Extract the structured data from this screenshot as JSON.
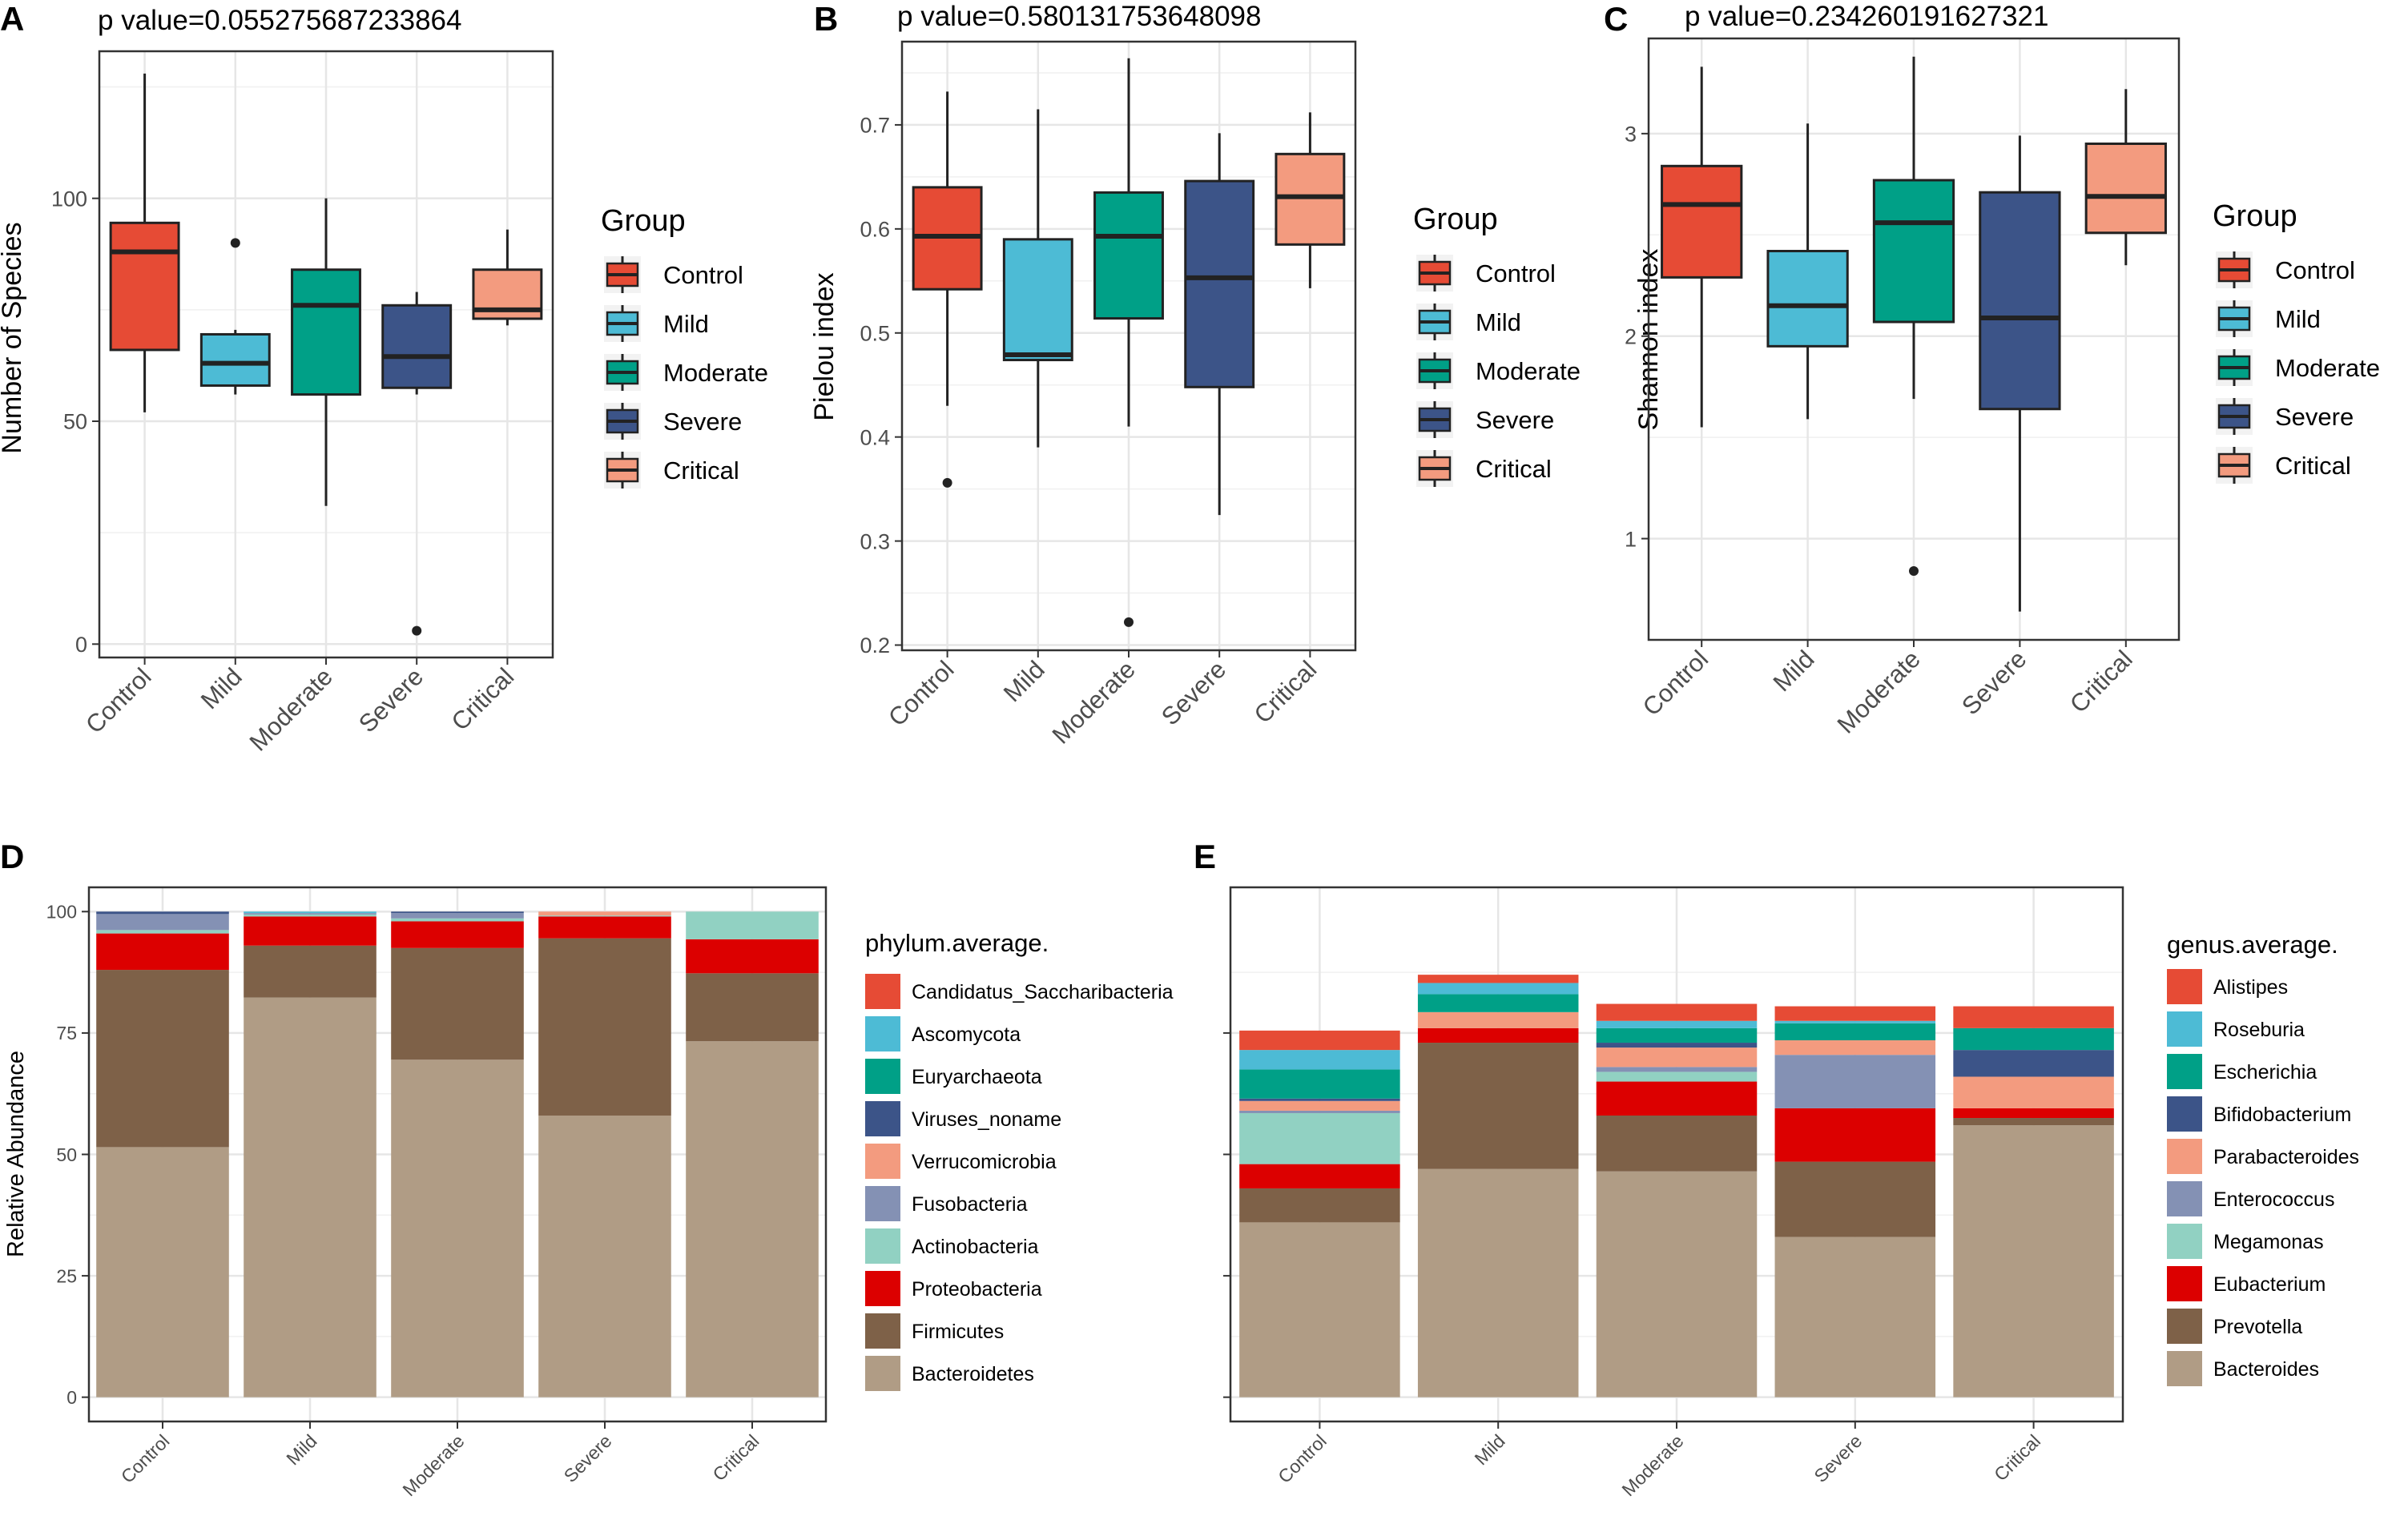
{
  "figure": {
    "group_colors": {
      "Control": "#E64B35",
      "Mild": "#4DBBD5",
      "Moderate": "#00A087",
      "Severe": "#3C5488",
      "Critical": "#F39B7F"
    }
  },
  "chart_data": [
    {
      "panel_label": "A",
      "type": "boxplot",
      "title": "p value=0.055275687233864",
      "xlabel": "",
      "ylabel": "Number of Species",
      "categories": [
        "Control",
        "Mild",
        "Moderate",
        "Severe",
        "Critical"
      ],
      "ylim": [
        -3,
        133
      ],
      "yticks": [
        0,
        50,
        100
      ],
      "ytick_labels": [
        "0",
        "50",
        "100"
      ],
      "boxes": [
        {
          "name": "Control",
          "min": 52,
          "q1": 66,
          "median": 88,
          "q3": 94.5,
          "max": 128,
          "outliers": []
        },
        {
          "name": "Mild",
          "min": 56,
          "q1": 58,
          "median": 63,
          "q3": 69.5,
          "max": 70.5,
          "outliers": [
            90
          ]
        },
        {
          "name": "Moderate",
          "min": 31,
          "q1": 56,
          "median": 76,
          "q3": 84,
          "max": 100,
          "outliers": []
        },
        {
          "name": "Severe",
          "min": 56,
          "q1": 57.5,
          "median": 64.5,
          "q3": 76,
          "max": 79,
          "outliers": [
            3
          ]
        },
        {
          "name": "Critical",
          "min": 71.5,
          "q1": 73,
          "median": 75,
          "q3": 84,
          "max": 93,
          "outliers": []
        }
      ],
      "legend": {
        "title": "Group",
        "position": "right",
        "entries": [
          "Control",
          "Mild",
          "Moderate",
          "Severe",
          "Critical"
        ]
      }
    },
    {
      "panel_label": "B",
      "type": "boxplot",
      "title": "p value=0.580131753648098",
      "xlabel": "",
      "ylabel": "Pielou index",
      "categories": [
        "Control",
        "Mild",
        "Moderate",
        "Severe",
        "Critical"
      ],
      "ylim": [
        0.195,
        0.78
      ],
      "yticks": [
        0.2,
        0.3,
        0.4,
        0.5,
        0.6,
        0.7
      ],
      "ytick_labels": [
        "0.2",
        "0.3",
        "0.4",
        "0.5",
        "0.6",
        "0.7"
      ],
      "boxes": [
        {
          "name": "Control",
          "min": 0.43,
          "q1": 0.542,
          "median": 0.593,
          "q3": 0.64,
          "max": 0.732,
          "outliers": [
            0.356
          ]
        },
        {
          "name": "Mild",
          "min": 0.39,
          "q1": 0.474,
          "median": 0.479,
          "q3": 0.59,
          "max": 0.715,
          "outliers": []
        },
        {
          "name": "Moderate",
          "min": 0.41,
          "q1": 0.514,
          "median": 0.593,
          "q3": 0.635,
          "max": 0.764,
          "outliers": [
            0.222
          ]
        },
        {
          "name": "Severe",
          "min": 0.325,
          "q1": 0.448,
          "median": 0.553,
          "q3": 0.646,
          "max": 0.692,
          "outliers": []
        },
        {
          "name": "Critical",
          "min": 0.543,
          "q1": 0.585,
          "median": 0.631,
          "q3": 0.672,
          "max": 0.712,
          "outliers": []
        }
      ],
      "legend": {
        "title": "Group",
        "position": "right",
        "entries": [
          "Control",
          "Mild",
          "Moderate",
          "Severe",
          "Critical"
        ]
      }
    },
    {
      "panel_label": "C",
      "type": "boxplot",
      "title": "p value=0.234260191627321",
      "xlabel": "",
      "ylabel": "Shannon index",
      "categories": [
        "Control",
        "Mild",
        "Moderate",
        "Severe",
        "Critical"
      ],
      "ylim": [
        0.5,
        3.47
      ],
      "yticks": [
        1,
        2,
        3
      ],
      "ytick_labels": [
        "1",
        "2",
        "3"
      ],
      "boxes": [
        {
          "name": "Control",
          "min": 1.55,
          "q1": 2.29,
          "median": 2.65,
          "q3": 2.84,
          "max": 3.33,
          "outliers": []
        },
        {
          "name": "Mild",
          "min": 1.59,
          "q1": 1.95,
          "median": 2.15,
          "q3": 2.42,
          "max": 3.05,
          "outliers": []
        },
        {
          "name": "Moderate",
          "min": 1.69,
          "q1": 2.07,
          "median": 2.56,
          "q3": 2.77,
          "max": 3.38,
          "outliers": [
            0.84
          ]
        },
        {
          "name": "Severe",
          "min": 0.64,
          "q1": 1.64,
          "median": 2.09,
          "q3": 2.71,
          "max": 2.99,
          "outliers": []
        },
        {
          "name": "Critical",
          "min": 2.35,
          "q1": 2.51,
          "median": 2.69,
          "q3": 2.95,
          "max": 3.22,
          "outliers": []
        }
      ],
      "legend": {
        "title": "Group",
        "position": "right",
        "entries": [
          "Control",
          "Mild",
          "Moderate",
          "Severe",
          "Critical"
        ]
      }
    },
    {
      "panel_label": "D",
      "type": "bar",
      "stacked": true,
      "xlabel": "",
      "ylabel": "Relative Abundance",
      "categories": [
        "Control",
        "Mild",
        "Moderate",
        "Severe",
        "Critical"
      ],
      "ylim": [
        -5,
        105
      ],
      "yticks": [
        0,
        25,
        50,
        75,
        100
      ],
      "ytick_labels": [
        "0",
        "25",
        "50",
        "75",
        "100"
      ],
      "legend": {
        "title": "phylum.average.",
        "position": "right"
      },
      "series": [
        {
          "name": "Bacteroidetes",
          "color": "#B09C85",
          "values": [
            51.5,
            82.3,
            69.5,
            58,
            73.3
          ]
        },
        {
          "name": "Firmicutes",
          "color": "#7E6148",
          "values": [
            36.5,
            10.7,
            23,
            36.5,
            14
          ]
        },
        {
          "name": "Proteobacteria",
          "color": "#DC0000",
          "values": [
            7.5,
            6,
            5.5,
            4.5,
            7
          ]
        },
        {
          "name": "Actinobacteria",
          "color": "#91D1C2",
          "values": [
            0.7,
            0.4,
            0.6,
            0.2,
            5.7
          ]
        },
        {
          "name": "Fusobacteria",
          "color": "#8491B4",
          "values": [
            3.3,
            0.3,
            1.1,
            0,
            0
          ]
        },
        {
          "name": "Verrucomicrobia",
          "color": "#F39B7F",
          "values": [
            0,
            0,
            0,
            0.8,
            0
          ]
        },
        {
          "name": "Viruses_noname",
          "color": "#3C5488",
          "values": [
            0.5,
            0,
            0.3,
            0,
            0
          ]
        },
        {
          "name": "Euryarchaeota",
          "color": "#00A087",
          "values": [
            0,
            0,
            0,
            0,
            0
          ]
        },
        {
          "name": "Ascomycota",
          "color": "#4DBBD5",
          "values": [
            0,
            0.3,
            0,
            0,
            0
          ]
        },
        {
          "name": "Candidatus_Saccharibacteria",
          "color": "#E64B35",
          "values": [
            0,
            0,
            0,
            0,
            0
          ]
        }
      ]
    },
    {
      "panel_label": "E",
      "type": "bar",
      "stacked": true,
      "xlabel": "",
      "ylabel": "",
      "categories": [
        "Control",
        "Mild",
        "Moderate",
        "Severe",
        "Critical"
      ],
      "ylim": [
        -5,
        105
      ],
      "yticks": [
        0,
        25,
        50,
        75
      ],
      "ytick_labels": [
        "",
        "",
        "",
        ""
      ],
      "legend": {
        "title": "genus.average.",
        "position": "right"
      },
      "series": [
        {
          "name": "Bacteroides",
          "color": "#B09C85",
          "values": [
            36,
            47,
            46.5,
            33,
            56
          ]
        },
        {
          "name": "Prevotella",
          "color": "#7E6148",
          "values": [
            7,
            26,
            11.5,
            15.5,
            1.5
          ]
        },
        {
          "name": "Eubacterium",
          "color": "#DC0000",
          "values": [
            5,
            3,
            7,
            11,
            2
          ]
        },
        {
          "name": "Megamonas",
          "color": "#91D1C2",
          "values": [
            10.5,
            0,
            2,
            0,
            0
          ]
        },
        {
          "name": "Enterococcus",
          "color": "#8491B4",
          "values": [
            0.5,
            0,
            1,
            11,
            0
          ]
        },
        {
          "name": "Parabacteroides",
          "color": "#F39B7F",
          "values": [
            2,
            3.3,
            4,
            3,
            6.5
          ]
        },
        {
          "name": "Bifidobacterium",
          "color": "#3C5488",
          "values": [
            0.5,
            0,
            1,
            0,
            5.5
          ]
        },
        {
          "name": "Escherichia",
          "color": "#00A087",
          "values": [
            6,
            3.7,
            3,
            3.5,
            4.5
          ]
        },
        {
          "name": "Roseburia",
          "color": "#4DBBD5",
          "values": [
            4,
            2.3,
            1.5,
            0.5,
            0
          ]
        },
        {
          "name": "Alistipes",
          "color": "#E64B35",
          "values": [
            4,
            1.7,
            3.5,
            3,
            4.5
          ]
        }
      ]
    }
  ]
}
